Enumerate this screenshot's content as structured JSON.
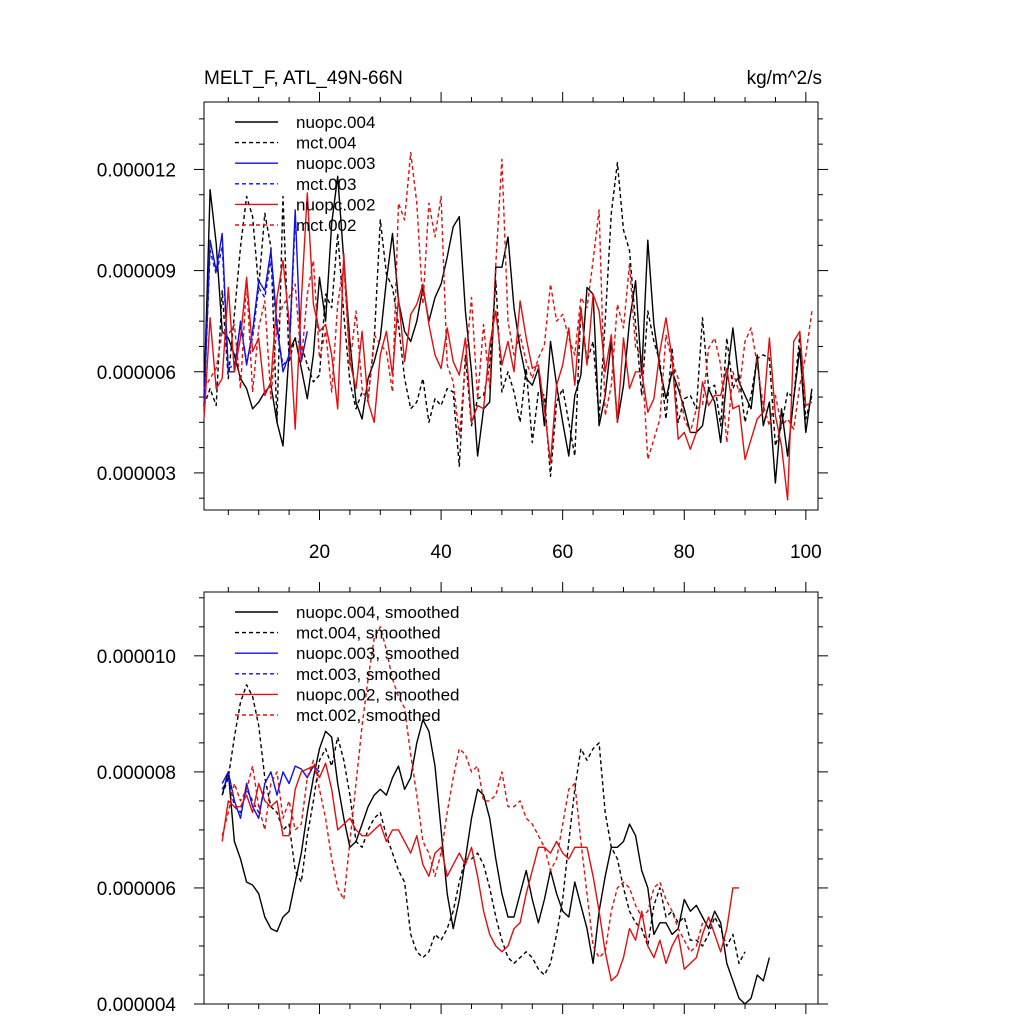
{
  "colors": {
    "black": "#000000",
    "blue": "#1010e0",
    "red": "#e01010"
  },
  "chart_data": [
    {
      "type": "line",
      "title": "MELT_F, ATL_49N-66N",
      "units": "kg/m^2/s",
      "xlim": [
        1,
        102
      ],
      "ylim": [
        1.9e-06,
        1.4e-05
      ],
      "xticks": [
        20,
        40,
        60,
        80,
        100
      ],
      "xtick_labels": [
        "20",
        "40",
        "60",
        "80",
        "100"
      ],
      "yticks": [
        3e-06,
        6e-06,
        9e-06,
        1.2e-05
      ],
      "ytick_labels": [
        "0.000003",
        "0.000006",
        "0.000009",
        "0.000012"
      ],
      "legend_position": "top-left",
      "series": [
        {
          "name": "nuopc.004",
          "color": "black",
          "dash": "solid",
          "x0": 1,
          "values": [
            5.2,
            11.4,
            9.8,
            7.2,
            7.0,
            6.5,
            5.8,
            5.5,
            4.9,
            5.1,
            5.4,
            5.6,
            4.5,
            3.8,
            6.6,
            7.0,
            6.1,
            5.2,
            6.5,
            8.8,
            7.5,
            10.4,
            11.8,
            9.3,
            6.9,
            5.1,
            4.6,
            5.8,
            6.3,
            7.0,
            8.7,
            10.1,
            8.1,
            7.2,
            6.9,
            7.5,
            8.5,
            7.5,
            8.2,
            8.6,
            9.4,
            10.3,
            10.6,
            7.8,
            6.0,
            3.5,
            4.9,
            5.1,
            9.1,
            9.1,
            10.0,
            7.9,
            6.7,
            5.8,
            5.6,
            6.1,
            4.4,
            6.9,
            5.6,
            4.5,
            3.5,
            5.3,
            5.9,
            8.5,
            8.3,
            4.4,
            5.3,
            6.9,
            4.5,
            5.6,
            7.5,
            8.7,
            5.9,
            9.9,
            7.4,
            6.1,
            5.2,
            6.0,
            5.5,
            4.9,
            4.2,
            4.2,
            4.4,
            5.5,
            5.1,
            3.9,
            5.8,
            7.3,
            5.7,
            5.3,
            4.9,
            6.5,
            4.4,
            5.1,
            2.7,
            4.9,
            3.5,
            5.2,
            6.7,
            4.2,
            5.5
          ]
        },
        {
          "name": "mct.004",
          "color": "black",
          "dash": "dashed",
          "x0": 1,
          "values": [
            5.0,
            5.5,
            5.0,
            8.4,
            5.8,
            7.7,
            9.7,
            11.2,
            10.6,
            8.5,
            10.7,
            9.7,
            4.5,
            11.2,
            6.3,
            7.0,
            6.8,
            6.2,
            5.7,
            5.9,
            8.3,
            7.9,
            10.1,
            7.7,
            5.7,
            4.9,
            5.4,
            5.2,
            6.9,
            10.5,
            8.9,
            8.5,
            7.4,
            5.8,
            4.9,
            5.1,
            5.8,
            4.5,
            5.2,
            5.0,
            5.5,
            5.4,
            3.2,
            6.5,
            4.4,
            5.2,
            5.3,
            6.2,
            8.7,
            5.4,
            6.0,
            5.4,
            4.5,
            6.1,
            3.9,
            5.4,
            5.3,
            2.9,
            5.1,
            5.5,
            4.5,
            3.5,
            7.9,
            6.3,
            6.9,
            4.6,
            7.5,
            10.7,
            12.2,
            10.2,
            9.6,
            7.4,
            5.3,
            7.8,
            6.9,
            6.3,
            4.6,
            6.7,
            4.5,
            5.2,
            5.3,
            4.9,
            7.6,
            5.5,
            5.6,
            4.4,
            7.0,
            5.5,
            5.9,
            4.5,
            5.3,
            6.4,
            6.5,
            6.4,
            3.8,
            4.4,
            5.4,
            5.2,
            7.1,
            4.6,
            5.3
          ]
        },
        {
          "name": "nuopc.003",
          "color": "blue",
          "dash": "solid",
          "x0": 1,
          "values": [
            5.0,
            9.9,
            9.0,
            10.1,
            6.0,
            6.0,
            7.5,
            6.2,
            7.2,
            8.7,
            8.4,
            9.6,
            7.4,
            6.0,
            6.5,
            10.8,
            6.3,
            7.2
          ]
        },
        {
          "name": "mct.003",
          "color": "blue",
          "dash": "dashed",
          "x0": 1,
          "values": [
            5.0,
            9.6,
            8.9,
            9.7,
            6.1,
            6.2,
            7.4,
            6.3,
            7.0,
            8.5,
            8.2,
            9.3,
            7.2,
            6.2,
            6.4,
            10.5
          ]
        },
        {
          "name": "nuopc.002",
          "color": "red",
          "dash": "solid",
          "x0": 1,
          "values": [
            4.6,
            7.6,
            5.5,
            5.8,
            8.5,
            6.0,
            7.0,
            8.8,
            6.6,
            7.0,
            5.3,
            5.7,
            8.2,
            9.3,
            7.5,
            4.3,
            8.1,
            11.3,
            8.0,
            7.2,
            7.4,
            6.5,
            4.9,
            9.5,
            6.3,
            5.5,
            7.2,
            5.1,
            4.5,
            6.5,
            7.2,
            5.9,
            8.2,
            6.3,
            7.7,
            8.0,
            8.6,
            7.4,
            6.5,
            6.1,
            7.3,
            6.3,
            5.9,
            7.0,
            4.5,
            5.0,
            4.9,
            6.8,
            7.8,
            6.2,
            6.9,
            6.0,
            8.1,
            7.0,
            6.1,
            6.2,
            4.9,
            3.3,
            5.6,
            6.2,
            7.3,
            5.6,
            7.9,
            6.2,
            8.3,
            7.8,
            6.0,
            7.1,
            4.5,
            7.0,
            5.5,
            6.0,
            6.0,
            4.8,
            5.2,
            6.6,
            7.6,
            6.4,
            4.0,
            4.2,
            3.7,
            4.2,
            5.7,
            5.0,
            5.3,
            5.3,
            6.1,
            4.9,
            5.0,
            3.4,
            4.0,
            4.6,
            4.8,
            7.0,
            4.7,
            3.8,
            2.2,
            6.9,
            7.2,
            5.0,
            5.1
          ]
        },
        {
          "name": "mct.002",
          "color": "red",
          "dash": "dashed",
          "x0": 1,
          "values": [
            5.5,
            5.8,
            6.1,
            7.2,
            7.1,
            7.4,
            5.5,
            8.7,
            5.4,
            7.3,
            8.1,
            5.2,
            7.4,
            8.0,
            8.2,
            8.6,
            6.3,
            8.3,
            9.3,
            6.4,
            7.2,
            5.4,
            8.0,
            9.2,
            6.2,
            7.8,
            5.5,
            5.1,
            7.1,
            6.8,
            6.6,
            5.4,
            11.0,
            10.5,
            12.5,
            11.0,
            8.0,
            11.0,
            10.0,
            11.2,
            6.2,
            5.7,
            4.1,
            6.2,
            8.2,
            5.2,
            7.4,
            5.5,
            9.2,
            12.3,
            7.5,
            6.5,
            7.1,
            6.3,
            5.8,
            6.4,
            6.8,
            8.6,
            7.5,
            7.7,
            7.0,
            6.5,
            8.2,
            7.9,
            9.3,
            10.8,
            4.7,
            5.6,
            8.0,
            7.3,
            9.2,
            6.7,
            6.5,
            3.4,
            4.0,
            4.6,
            7.1,
            6.3,
            5.8,
            4.6,
            4.2,
            4.9,
            5.0,
            6.7,
            7.0,
            6.2,
            3.9,
            6.0,
            5.4,
            6.9,
            7.3,
            6.2,
            5.0,
            4.4,
            5.3,
            4.4,
            4.6,
            4.3,
            5.6,
            6.5,
            7.8
          ]
        }
      ]
    },
    {
      "type": "line",
      "title": "",
      "xlim": [
        1,
        102
      ],
      "ylim": [
        4e-06,
        1.11e-05
      ],
      "xticks": [
        20,
        40,
        60,
        80,
        100
      ],
      "yticks": [
        4e-06,
        6e-06,
        8e-06,
        1e-05
      ],
      "ytick_labels": [
        "0.000004",
        "0.000006",
        "0.000008",
        "0.000010"
      ],
      "legend_position": "top-left",
      "series": [
        {
          "name": "nuopc.004, smoothed",
          "color": "black",
          "dash": "solid",
          "x0": 4,
          "values": [
            7.6,
            8.0,
            6.8,
            6.5,
            6.1,
            6.05,
            5.9,
            5.5,
            5.3,
            5.25,
            5.5,
            5.6,
            6.1,
            6.6,
            7.3,
            7.9,
            8.4,
            8.7,
            8.6,
            7.8,
            7.2,
            6.7,
            6.8,
            7.1,
            7.4,
            7.6,
            7.7,
            7.6,
            7.9,
            8.1,
            7.7,
            7.9,
            8.5,
            8.9,
            8.7,
            8.1,
            7.0,
            5.9,
            5.3,
            5.8,
            6.5,
            7.2,
            7.7,
            7.6,
            7.2,
            6.5,
            5.9,
            5.5,
            5.5,
            5.9,
            6.3,
            5.8,
            5.4,
            5.8,
            6.3,
            5.9,
            5.6,
            5.5,
            6.1,
            5.7,
            5.3,
            4.7,
            5.6,
            6.2,
            6.7,
            6.7,
            6.8,
            7.1,
            6.9,
            6.3,
            6.0,
            5.2,
            5.4,
            5.4,
            5.2,
            5.3,
            5.8,
            5.6,
            5.7,
            5.5,
            5.3,
            5.6,
            5.4,
            4.7,
            4.4,
            4.1,
            4.0,
            4.1,
            4.5,
            4.4,
            4.8
          ]
        },
        {
          "name": "mct.004, smoothed",
          "color": "black",
          "dash": "dashed",
          "x0": 4,
          "values": [
            7.6,
            7.9,
            8.6,
            9.2,
            9.5,
            9.3,
            8.8,
            7.9,
            7.4,
            7.3,
            7.0,
            7.1,
            6.3,
            6.1,
            6.9,
            7.5,
            8.2,
            8.4,
            8.1,
            8.6,
            8.2,
            7.6,
            6.8,
            6.7,
            7.0,
            7.2,
            7.3,
            6.9,
            6.6,
            6.3,
            6.1,
            5.2,
            4.9,
            4.8,
            4.9,
            5.2,
            5.1,
            5.3,
            5.6,
            6.1,
            6.5,
            6.5,
            6.6,
            6.4,
            6.0,
            5.5,
            5.1,
            4.8,
            4.7,
            4.8,
            4.9,
            4.8,
            4.6,
            4.5,
            4.7,
            5.2,
            5.8,
            6.8,
            7.7,
            8.4,
            8.2,
            8.4,
            8.5,
            7.3,
            6.7,
            6.5,
            6.0,
            5.6,
            5.4,
            5.3,
            5.0,
            5.7,
            6.0,
            5.5,
            5.6,
            5.4,
            5.5,
            5.1,
            5.1,
            5.0,
            5.2,
            5.5,
            5.3,
            5.0,
            5.2,
            4.7,
            4.9
          ]
        },
        {
          "name": "nuopc.003, smoothed",
          "color": "blue",
          "dash": "solid",
          "x0": 4,
          "values": [
            7.8,
            8.0,
            7.5,
            7.2,
            7.8,
            7.4,
            7.2,
            7.8,
            8.0,
            7.6,
            8.0,
            7.8,
            8.1,
            8.05,
            7.9,
            8.1,
            8.0
          ]
        },
        {
          "name": "mct.003, smoothed",
          "color": "blue",
          "dash": "dashed",
          "x0": 4,
          "values": [
            7.7,
            7.9,
            7.4,
            7.3,
            7.7,
            7.5,
            7.3,
            7.7
          ]
        },
        {
          "name": "nuopc.002, smoothed",
          "color": "red",
          "dash": "solid",
          "x0": 4,
          "values": [
            6.8,
            7.5,
            7.4,
            7.4,
            7.6,
            7.3,
            7.8,
            7.5,
            7.4,
            7.5,
            6.9,
            6.9,
            7.7,
            8.0,
            8.05,
            8.1,
            7.9,
            8.15,
            7.7,
            7.0,
            7.1,
            7.2,
            7.0,
            6.9,
            6.9,
            7.0,
            7.1,
            6.8,
            7.0,
            7.0,
            6.8,
            6.6,
            6.9,
            6.4,
            6.2,
            6.6,
            6.7,
            6.2,
            6.4,
            6.6,
            6.4,
            6.7,
            6.2,
            5.6,
            5.2,
            5.0,
            4.9,
            5.0,
            5.3,
            5.4,
            5.9,
            6.3,
            6.7,
            6.7,
            6.6,
            6.8,
            6.6,
            6.5,
            6.7,
            6.7,
            6.7,
            6.2,
            5.6,
            4.9,
            4.4,
            4.5,
            4.8,
            5.3,
            5.1,
            5.6,
            5.0,
            4.8,
            5.1,
            4.7,
            5.0,
            5.2,
            4.6,
            4.7,
            4.8,
            5.2,
            5.5,
            5.2,
            4.9,
            5.3,
            6.0,
            6.0
          ]
        },
        {
          "name": "mct.002, smoothed",
          "color": "red",
          "dash": "dashed",
          "x0": 4,
          "values": [
            6.9,
            7.3,
            7.8,
            7.5,
            7.7,
            8.1,
            7.4,
            7.0,
            7.8,
            8.0,
            7.2,
            7.5,
            7.0,
            7.1,
            7.9,
            8.2,
            7.7,
            7.2,
            6.5,
            6.0,
            5.8,
            6.8,
            7.8,
            8.8,
            9.6,
            10.3,
            10.5,
            10.1,
            9.6,
            9.3,
            9.1,
            8.3,
            7.6,
            6.8,
            6.6,
            6.2,
            6.6,
            7.3,
            7.9,
            8.4,
            8.3,
            8.0,
            8.1,
            7.5,
            7.5,
            7.6,
            8.0,
            7.4,
            7.4,
            7.5,
            7.2,
            7.1,
            6.9,
            6.7,
            6.3,
            6.5,
            7.1,
            7.7,
            7.8,
            6.8,
            5.9,
            5.0,
            4.8,
            4.9,
            5.6,
            6.0,
            6.1,
            6.0,
            5.7,
            5.5,
            5.6,
            6.0,
            6.1,
            5.8,
            5.6,
            5.3,
            5.1,
            4.9,
            5.0,
            5.4
          ]
        }
      ]
    }
  ]
}
